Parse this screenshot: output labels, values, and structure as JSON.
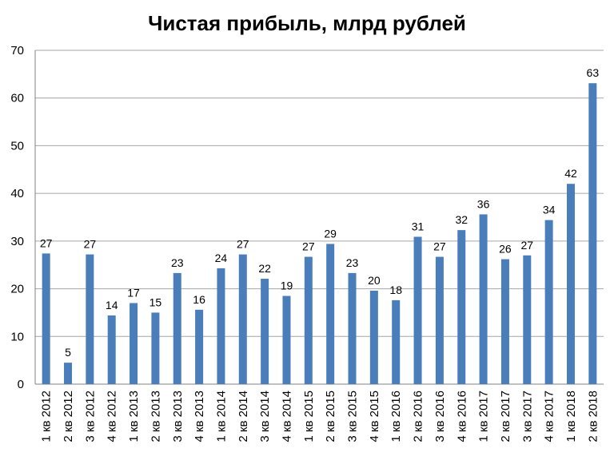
{
  "chart_data": {
    "type": "bar",
    "title": "Чистая прибыль, млрд рублей",
    "xlabel": "",
    "ylabel": "",
    "ylim": [
      0,
      70
    ],
    "yticks": [
      0,
      10,
      20,
      30,
      40,
      50,
      60,
      70
    ],
    "grid": true,
    "legend": "none",
    "bar_color": "#4a7ebb",
    "categories": [
      "1 кв 2012",
      "2 кв 2012",
      "3 кв 2012",
      "4 кв 2012",
      "1 кв 2013",
      "2 кв 2013",
      "3 кв 2013",
      "4 кв 2013",
      "1 кв 2014",
      "2 кв 2014",
      "3 кв 2014",
      "4 кв 2014",
      "1 кв 2015",
      "2 кв 2015",
      "3 кв 2015",
      "4 кв 2015",
      "1 кв 2016",
      "2 кв 2016",
      "3 кв 2016",
      "4 кв 2016",
      "1 кв 2017",
      "2 кв 2017",
      "3 кв 2017",
      "4 кв 2017",
      "1 кв 2018",
      "2 кв 2018"
    ],
    "values": [
      27.4,
      4.5,
      27.2,
      14.4,
      17.0,
      15.0,
      23.3,
      15.6,
      24.3,
      27.2,
      22.1,
      18.5,
      26.7,
      29.4,
      23.3,
      19.6,
      17.6,
      30.9,
      26.7,
      32.3,
      35.6,
      26.2,
      27.0,
      34.4,
      42.0,
      63.1
    ],
    "data_labels": [
      "27",
      "5",
      "27",
      "14",
      "17",
      "15",
      "23",
      "16",
      "24",
      "27",
      "22",
      "19",
      "27",
      "29",
      "23",
      "20",
      "18",
      "31",
      "27",
      "32",
      "36",
      "26",
      "27",
      "34",
      "42",
      "63"
    ]
  }
}
